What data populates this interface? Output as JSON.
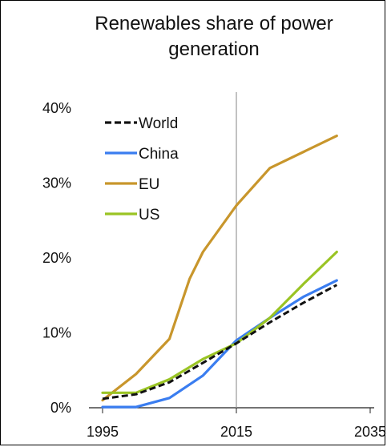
{
  "chart_data": {
    "type": "line",
    "title_lines": [
      "Renewables share of power",
      "generation"
    ],
    "xlabel": "",
    "ylabel": "",
    "xlim": [
      1995,
      2035
    ],
    "ylim": [
      0,
      40
    ],
    "x_ticks": [
      {
        "value": 1995,
        "label": "1995"
      },
      {
        "value": 2015,
        "label": "2015"
      },
      {
        "value": 2035,
        "label": "2035"
      }
    ],
    "y_ticks": [
      {
        "value": 0,
        "label": "0%"
      },
      {
        "value": 10,
        "label": "10%"
      },
      {
        "value": 20,
        "label": "20%"
      },
      {
        "value": 30,
        "label": "30%"
      },
      {
        "value": 40,
        "label": "40%"
      }
    ],
    "reference_line_x": 2015,
    "legend_position": "top-left",
    "series": [
      {
        "name": "World",
        "color": "#111111",
        "dashed": true,
        "points": [
          [
            1995,
            1.2
          ],
          [
            2000,
            1.8
          ],
          [
            2005,
            3.4
          ],
          [
            2010,
            6.0
          ],
          [
            2015,
            8.6
          ],
          [
            2020,
            11.4
          ],
          [
            2025,
            14.0
          ],
          [
            2030,
            16.4
          ]
        ]
      },
      {
        "name": "China",
        "color": "#3a7df0",
        "dashed": false,
        "points": [
          [
            1995,
            0.1
          ],
          [
            2000,
            0.1
          ],
          [
            2005,
            1.3
          ],
          [
            2010,
            4.3
          ],
          [
            2015,
            9.0
          ],
          [
            2020,
            12.0
          ],
          [
            2025,
            14.8
          ],
          [
            2030,
            17.0
          ]
        ]
      },
      {
        "name": "EU",
        "color": "#c8962c",
        "dashed": false,
        "points": [
          [
            1995,
            1.0
          ],
          [
            2000,
            4.5
          ],
          [
            2005,
            9.2
          ],
          [
            2008,
            17.2
          ],
          [
            2010,
            20.8
          ],
          [
            2015,
            27.0
          ],
          [
            2020,
            32.0
          ],
          [
            2030,
            36.3
          ]
        ]
      },
      {
        "name": "US",
        "color": "#9ac424",
        "dashed": false,
        "points": [
          [
            1995,
            2.0
          ],
          [
            2000,
            2.0
          ],
          [
            2005,
            3.8
          ],
          [
            2010,
            6.5
          ],
          [
            2015,
            8.6
          ],
          [
            2020,
            12.0
          ],
          [
            2025,
            16.5
          ],
          [
            2030,
            20.8
          ]
        ]
      }
    ]
  }
}
